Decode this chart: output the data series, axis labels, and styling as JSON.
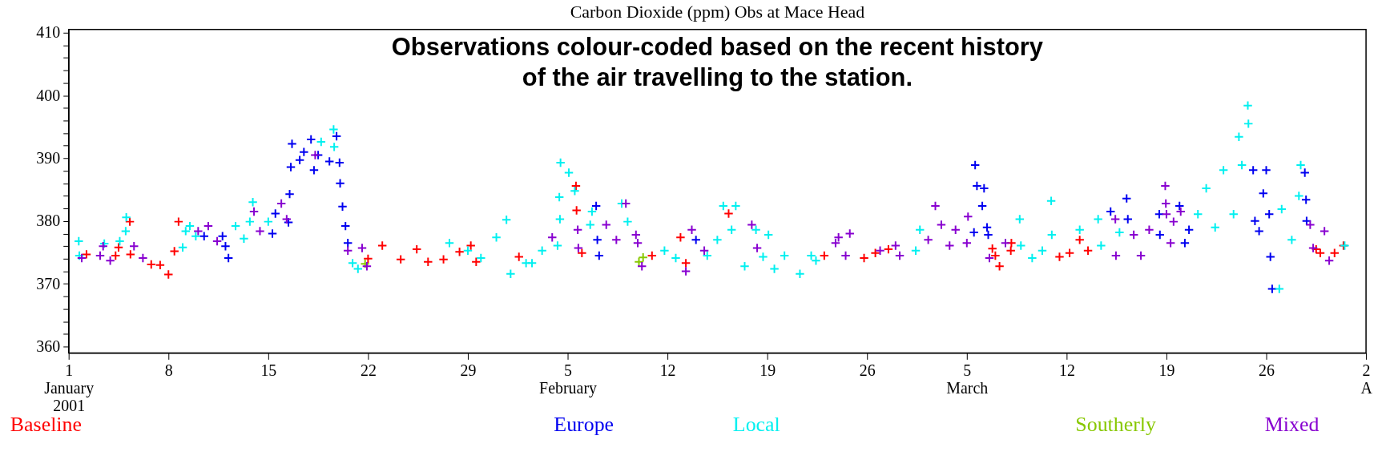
{
  "chart_data": {
    "type": "scatter",
    "title": "Carbon Dioxide (ppm) Obs at Mace Head",
    "annotations": [
      "Observations colour-coded based on the recent history\nof the air travelling to the station."
    ],
    "xlim": [
      "2001-01-01",
      "2001-04-02"
    ],
    "xticks": [
      {
        "value": "2001-01-01",
        "label": "1\nJanuary\n2001"
      },
      {
        "value": "2001-01-08",
        "label": "8"
      },
      {
        "value": "2001-01-15",
        "label": "15"
      },
      {
        "value": "2001-01-22",
        "label": "22"
      },
      {
        "value": "2001-01-29",
        "label": "29"
      },
      {
        "value": "2001-02-05",
        "label": "5\nFebruary"
      },
      {
        "value": "2001-02-12",
        "label": "12"
      },
      {
        "value": "2001-02-19",
        "label": "19"
      },
      {
        "value": "2001-02-26",
        "label": "26"
      },
      {
        "value": "2001-03-05",
        "label": "5\nMarch"
      },
      {
        "value": "2001-03-12",
        "label": "12"
      },
      {
        "value": "2001-03-19",
        "label": "19"
      },
      {
        "value": "2001-03-26",
        "label": "26"
      },
      {
        "value": "2001-04-02",
        "label": "2\nA"
      }
    ],
    "ylim": [
      359,
      410.5
    ],
    "yticks": [
      360,
      {
        "value": 362,
        "label": null
      },
      {
        "value": 364,
        "label": null
      },
      {
        "value": 366,
        "label": null
      },
      {
        "value": 368,
        "label": null
      },
      370,
      {
        "value": 372,
        "label": null
      },
      {
        "value": 374,
        "label": null
      },
      {
        "value": 376,
        "label": null
      },
      {
        "value": 378,
        "label": null
      },
      380,
      {
        "value": 382,
        "label": null
      },
      {
        "value": 384,
        "label": null
      },
      {
        "value": 386,
        "label": null
      },
      {
        "value": 388,
        "label": null
      },
      390,
      {
        "value": 392,
        "label": null
      },
      {
        "value": 394,
        "label": null
      },
      {
        "value": 396,
        "label": null
      },
      {
        "value": 398,
        "label": null
      },
      400,
      {
        "value": 402,
        "label": null
      },
      {
        "value": 404,
        "label": null
      },
      {
        "value": 406,
        "label": null
      },
      {
        "value": 408,
        "label": null
      },
      410
    ],
    "marker": "cross",
    "legend": "bottom",
    "series": [
      {
        "name": "Baseline",
        "color": "#ff0000",
        "x": [
          "2001-01-02T06:00",
          "2001-01-04T07:00",
          "2001-01-04T12:00",
          "2001-01-05T07:00",
          "2001-01-05T08:00",
          "2001-01-06T19:00",
          "2001-01-07T10:00",
          "2001-01-08T00:00",
          "2001-01-08T10:00",
          "2001-01-08T17:00",
          "2001-01-22T00:00",
          "2001-01-23T00:00",
          "2001-01-24T07:00",
          "2001-01-25T10:00",
          "2001-01-26T05:00",
          "2001-01-27T07:00",
          "2001-01-28T10:00",
          "2001-01-29T05:00",
          "2001-01-29T14:00",
          "2001-02-01T14:00",
          "2001-02-05T14:00",
          "2001-02-05T15:00",
          "2001-02-06T00:00",
          "2001-02-10T22:00",
          "2001-02-12T22:00",
          "2001-02-13T07:00",
          "2001-02-16T07:00",
          "2001-02-23T00:00",
          "2001-02-25T19:00",
          "2001-02-26T14:00",
          "2001-02-27T12:00",
          "2001-03-06T19:00",
          "2001-03-07T00:00",
          "2001-03-07T07:00",
          "2001-03-08T02:00",
          "2001-03-08T03:00",
          "2001-03-11T12:00",
          "2001-03-12T05:00",
          "2001-03-12T22:00",
          "2001-03-13T12:00",
          "2001-03-29T12:00",
          "2001-03-29T19:00",
          "2001-03-30T19:00",
          "2001-03-31T10:00"
        ],
        "values": [
          374.7,
          374.5,
          375.8,
          379.9,
          374.7,
          373.1,
          373.0,
          371.5,
          375.2,
          379.9,
          374.0,
          376.1,
          373.9,
          375.5,
          373.5,
          373.9,
          375.1,
          376.1,
          373.5,
          374.3,
          385.6,
          381.7,
          374.9,
          374.5,
          377.4,
          373.3,
          381.2,
          374.5,
          374.1,
          374.9,
          375.5,
          375.6,
          374.5,
          372.8,
          375.3,
          376.5,
          374.3,
          374.9,
          377.0,
          375.3,
          375.5,
          374.9,
          374.9,
          376.1
        ]
      },
      {
        "name": "Europe",
        "color": "#0000f0",
        "x": [
          "2001-01-10T12:00",
          "2001-01-11T19:00",
          "2001-01-12T00:00",
          "2001-01-12T05:00",
          "2001-01-15T07:00",
          "2001-01-15T12:00",
          "2001-01-16T10:00",
          "2001-01-16T12:00",
          "2001-01-16T14:00",
          "2001-01-16T16:00",
          "2001-01-17T05:00",
          "2001-01-17T12:00",
          "2001-01-18T00:00",
          "2001-01-18T05:00",
          "2001-01-18T12:00",
          "2001-01-19T07:00",
          "2001-01-19T19:00",
          "2001-01-20T00:00",
          "2001-01-20T01:00",
          "2001-01-20T05:00",
          "2001-01-20T10:00",
          "2001-01-20T14:00",
          "2001-02-07T00:00",
          "2001-02-07T02:00",
          "2001-02-07T05:00",
          "2001-02-14T00:00",
          "2001-03-05T12:00",
          "2001-03-05T14:00",
          "2001-03-05T17:00",
          "2001-03-06T02:00",
          "2001-03-06T05:00",
          "2001-03-06T10:00",
          "2001-03-06T12:00",
          "2001-03-15T02:00",
          "2001-03-16T05:00",
          "2001-03-16T07:00",
          "2001-03-18T12:00",
          "2001-03-18T13:00",
          "2001-03-19T22:00",
          "2001-03-20T07:00",
          "2001-03-20T14:00",
          "2001-03-25T02:00",
          "2001-03-25T05:00",
          "2001-03-25T12:00",
          "2001-03-25T19:00",
          "2001-03-26T00:00",
          "2001-03-26T05:00",
          "2001-03-26T07:00",
          "2001-03-26T10:00",
          "2001-03-28T17:00",
          "2001-03-28T19:00",
          "2001-03-28T20:00"
        ],
        "values": [
          377.6,
          377.6,
          376.0,
          374.1,
          378.0,
          381.2,
          379.8,
          384.3,
          388.6,
          392.3,
          389.7,
          391.0,
          393.0,
          388.1,
          390.5,
          389.5,
          393.5,
          389.3,
          386.0,
          382.3,
          379.2,
          376.5,
          382.4,
          377.0,
          374.5,
          377.0,
          378.2,
          388.9,
          385.6,
          382.4,
          385.2,
          379.0,
          377.8,
          381.5,
          383.6,
          380.3,
          381.1,
          377.8,
          382.4,
          376.5,
          378.6,
          388.1,
          380.0,
          378.4,
          384.4,
          388.1,
          381.1,
          374.3,
          369.2,
          387.7,
          383.4,
          380.0
        ]
      },
      {
        "name": "Local",
        "color": "#00f0f0",
        "x": [
          "2001-01-01T17:00",
          "2001-01-01T18:00",
          "2001-01-03T12:00",
          "2001-01-04T14:00",
          "2001-01-05T00:00",
          "2001-01-05T01:00",
          "2001-01-09T00:00",
          "2001-01-09T05:00",
          "2001-01-09T12:00",
          "2001-01-09T22:00",
          "2001-01-12T17:00",
          "2001-01-13T07:00",
          "2001-01-13T17:00",
          "2001-01-13T22:00",
          "2001-01-15T00:00",
          "2001-01-18T17:00",
          "2001-01-19T14:00",
          "2001-01-19T15:00",
          "2001-01-20T22:00",
          "2001-01-21T07:00",
          "2001-01-27T17:00",
          "2001-01-29T00:00",
          "2001-01-29T22:00",
          "2001-01-31T00:00",
          "2001-01-31T17:00",
          "2001-02-01T00:00",
          "2001-02-02T02:00",
          "2001-02-02T12:00",
          "2001-02-03T05:00",
          "2001-02-04T07:00",
          "2001-02-04T10:00",
          "2001-02-04T11:00",
          "2001-02-04T12:00",
          "2001-02-05T02:00",
          "2001-02-05T12:00",
          "2001-02-06T14:00",
          "2001-02-06T17:00",
          "2001-02-08T19:00",
          "2001-02-09T05:00",
          "2001-02-11T19:00",
          "2001-02-12T14:00",
          "2001-02-14T19:00",
          "2001-02-15T12:00",
          "2001-02-15T22:00",
          "2001-02-16T12:00",
          "2001-02-16T19:00",
          "2001-02-17T10:00",
          "2001-02-18T05:00",
          "2001-02-18T17:00",
          "2001-02-19T02:00",
          "2001-02-19T12:00",
          "2001-02-20T05:00",
          "2001-02-21T07:00",
          "2001-02-22T02:00",
          "2001-02-22T10:00",
          "2001-03-01T10:00",
          "2001-03-01T17:00",
          "2001-03-08T17:00",
          "2001-03-08T19:00",
          "2001-03-09T14:00",
          "2001-03-10T07:00",
          "2001-03-10T22:00",
          "2001-03-10T23:00",
          "2001-03-12T22:00",
          "2001-03-14T05:00",
          "2001-03-14T10:00",
          "2001-03-15T17:00",
          "2001-03-21T05:00",
          "2001-03-21T19:00",
          "2001-03-22T10:00",
          "2001-03-23T00:00",
          "2001-03-23T17:00",
          "2001-03-24T02:00",
          "2001-03-24T07:00",
          "2001-03-24T17:00",
          "2001-03-24T18:00",
          "2001-03-26T22:00",
          "2001-03-27T02:00",
          "2001-03-27T19:00",
          "2001-03-28T07:00",
          "2001-03-28T10:00",
          "2001-03-31T12:00"
        ],
        "values": [
          376.8,
          374.5,
          376.4,
          376.8,
          378.4,
          380.6,
          375.8,
          378.4,
          379.2,
          377.6,
          379.2,
          377.2,
          379.9,
          383.0,
          379.9,
          392.6,
          394.6,
          391.8,
          373.3,
          372.4,
          376.5,
          375.3,
          374.1,
          377.4,
          380.2,
          371.6,
          373.3,
          373.3,
          375.3,
          376.1,
          383.8,
          380.3,
          389.3,
          387.7,
          384.8,
          379.4,
          381.5,
          382.8,
          379.9,
          375.3,
          374.1,
          374.5,
          377.0,
          382.4,
          378.6,
          382.4,
          372.8,
          378.6,
          374.3,
          377.8,
          372.4,
          374.5,
          371.6,
          374.5,
          373.7,
          375.3,
          378.6,
          380.3,
          376.1,
          374.1,
          375.3,
          383.2,
          377.8,
          378.6,
          380.3,
          376.1,
          378.2,
          381.1,
          385.2,
          379.0,
          388.1,
          381.1,
          393.4,
          388.9,
          398.4,
          395.5,
          369.2,
          381.9,
          377.0,
          384.0,
          388.9,
          376.1
        ]
      },
      {
        "name": "Southerly",
        "color": "#88c800",
        "x": [
          "2001-01-21T19:00",
          "2001-02-10T00:00",
          "2001-02-10T07:00"
        ],
        "values": [
          373.2,
          373.5,
          374.2
        ]
      },
      {
        "name": "Mixed",
        "color": "#8800d0",
        "x": [
          "2001-01-01T22:00",
          "2001-01-03T05:00",
          "2001-01-03T10:00",
          "2001-01-03T22:00",
          "2001-01-05T14:00",
          "2001-01-06T05:00",
          "2001-01-10T02:00",
          "2001-01-10T19:00",
          "2001-01-11T10:00",
          "2001-01-14T00:00",
          "2001-01-14T10:00",
          "2001-01-15T22:00",
          "2001-01-16T07:00",
          "2001-01-18T07:00",
          "2001-01-20T14:00",
          "2001-01-21T14:00",
          "2001-01-21T22:00",
          "2001-02-03T22:00",
          "2001-02-05T17:00",
          "2001-02-05T18:00",
          "2001-02-07T17:00",
          "2001-02-08T10:00",
          "2001-02-09T02:00",
          "2001-02-09T19:00",
          "2001-02-09T22:00",
          "2001-02-10T05:00",
          "2001-02-13T07:00",
          "2001-02-13T17:00",
          "2001-02-14T14:00",
          "2001-02-17T22:00",
          "2001-02-18T07:00",
          "2001-02-23T19:00",
          "2001-02-24T00:00",
          "2001-02-24T12:00",
          "2001-02-24T19:00",
          "2001-02-26T22:00",
          "2001-02-28T00:00",
          "2001-02-28T07:00",
          "2001-03-02T07:00",
          "2001-03-02T19:00",
          "2001-03-03T05:00",
          "2001-03-03T19:00",
          "2001-03-04T05:00",
          "2001-03-05T00:00",
          "2001-03-05T02:00",
          "2001-03-06T14:00",
          "2001-03-07T17:00",
          "2001-03-15T10:00",
          "2001-03-15T11:00",
          "2001-03-16T17:00",
          "2001-03-17T05:00",
          "2001-03-17T19:00",
          "2001-03-18T22:00",
          "2001-03-18T23:00",
          "2001-03-19T00:00",
          "2001-03-19T07:00",
          "2001-03-19T12:00",
          "2001-03-20T00:00",
          "2001-03-29T02:00",
          "2001-03-29T07:00",
          "2001-03-30T02:00",
          "2001-03-30T10:00"
        ],
        "values": [
          374.1,
          374.5,
          376.0,
          373.7,
          376.0,
          374.1,
          378.4,
          379.2,
          376.8,
          381.5,
          378.4,
          382.8,
          380.3,
          390.5,
          375.3,
          375.7,
          372.8,
          377.4,
          378.6,
          375.7,
          379.4,
          377.0,
          382.8,
          377.8,
          376.5,
          372.8,
          372.0,
          378.6,
          375.3,
          379.4,
          375.7,
          376.5,
          377.4,
          374.5,
          378.0,
          375.3,
          376.1,
          374.5,
          377.0,
          382.4,
          379.4,
          376.1,
          378.6,
          376.5,
          380.7,
          374.1,
          376.5,
          380.3,
          374.5,
          377.8,
          374.5,
          378.6,
          385.6,
          382.8,
          381.1,
          376.5,
          379.9,
          381.5,
          379.4,
          375.7,
          378.4,
          373.7
        ]
      }
    ]
  }
}
